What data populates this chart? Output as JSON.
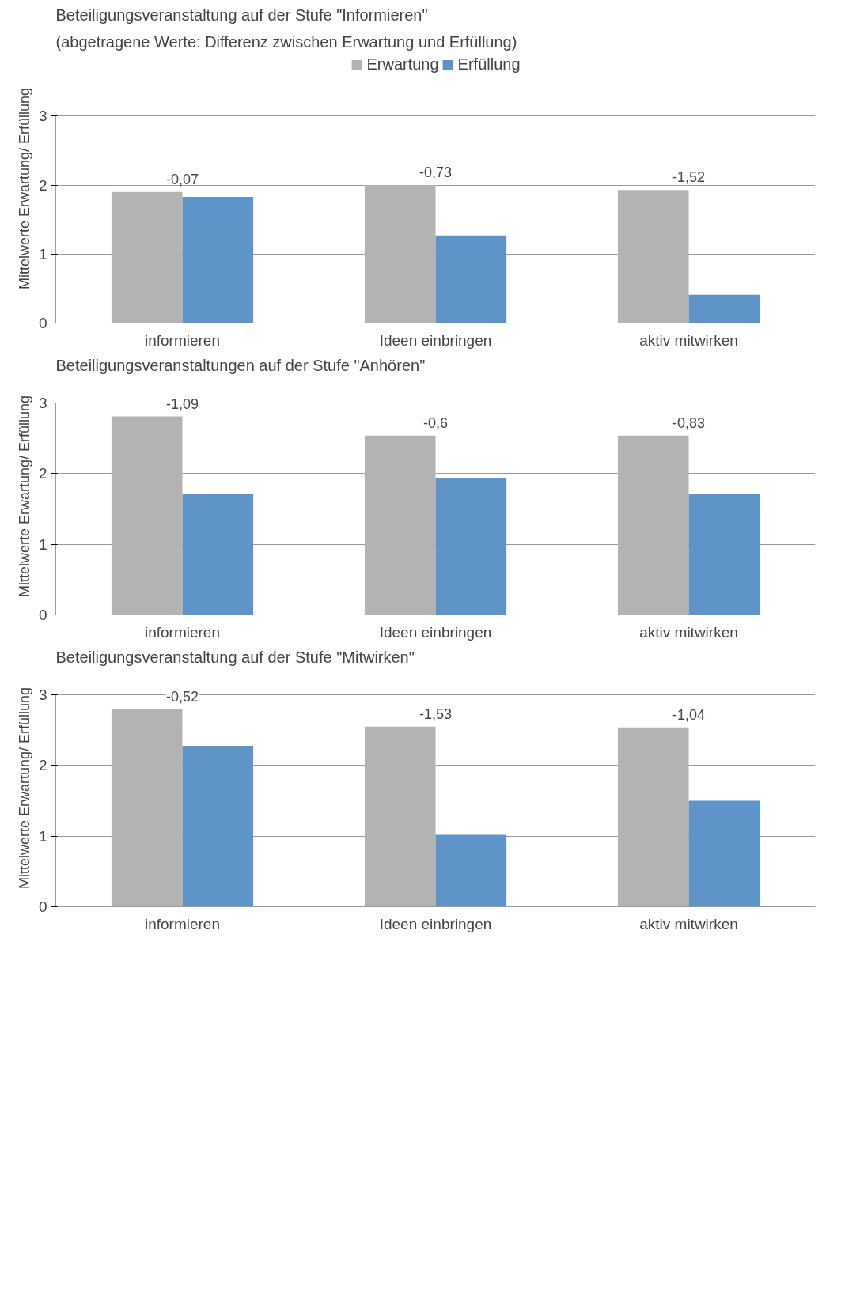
{
  "chart_data": [
    {
      "type": "bar",
      "title": "Beteiligungsveranstaltung auf der Stufe \"Informieren\"",
      "subtitle": "(abgetragene Werte: Differenz zwischen Erwartung und Erfüllung)",
      "ylabel": "Mittelwerte Erwartung/ Erfüllung",
      "categories": [
        "informieren",
        "Ideen einbringen",
        "aktiv mitwirken"
      ],
      "series": [
        {
          "name": "Erwartung",
          "color": "#b3b3b3",
          "values": [
            1.9,
            2.0,
            1.93
          ]
        },
        {
          "name": "Erfüllung",
          "color": "#5f94c9",
          "values": [
            1.83,
            1.27,
            0.41
          ]
        }
      ],
      "ylim": [
        0,
        3
      ],
      "yticks": [
        0,
        1,
        2,
        3
      ],
      "grid": "y",
      "legend": "top",
      "annotations": [
        "-0,07",
        "-0,73",
        "-1,52"
      ]
    },
    {
      "type": "bar",
      "title": "Beteiligungsveranstaltungen auf der Stufe \"Anhören\"",
      "ylabel": "Mittelwerte Erwartung/ Erfüllung",
      "categories": [
        "informieren",
        "Ideen einbringen",
        "aktiv mitwirken"
      ],
      "series": [
        {
          "color": "#b3b3b3",
          "values": [
            2.81,
            2.54,
            2.54
          ]
        },
        {
          "color": "#5f94c9",
          "values": [
            1.72,
            1.94,
            1.71
          ]
        }
      ],
      "ylim": [
        0,
        3
      ],
      "yticks": [
        0,
        1,
        2,
        3
      ],
      "grid": "y",
      "annotations": [
        "-1,09",
        "-0,6",
        "-0,83"
      ]
    },
    {
      "type": "bar",
      "title": "Beteiligungsveranstaltung auf der Stufe \"Mitwirken\"",
      "ylabel": "Mittelwerte Erwartung/ Erfüllung",
      "categories": [
        "informieren",
        "Ideen einbringen",
        "aktiv mitwirken"
      ],
      "series": [
        {
          "color": "#b3b3b3",
          "values": [
            2.8,
            2.55,
            2.54
          ]
        },
        {
          "color": "#5f94c9",
          "values": [
            2.28,
            1.02,
            1.5
          ]
        }
      ],
      "ylim": [
        0,
        3
      ],
      "yticks": [
        0,
        1,
        2,
        3
      ],
      "grid": "y",
      "annotations": [
        "-0,52",
        "-1,53",
        "-1,04"
      ]
    }
  ]
}
